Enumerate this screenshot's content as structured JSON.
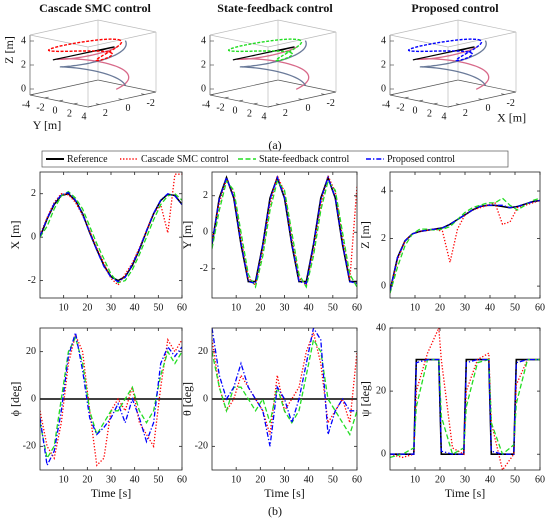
{
  "figure": {
    "label_a": "(a)",
    "label_b": "(b)"
  },
  "chart_data": [
    {
      "type": "trajectory3d",
      "title": "Cascade SMC control",
      "color": "#ff0000",
      "zlabel": "Z [m]",
      "ylabel": "Y [m]",
      "xlim": [
        3,
        -3
      ],
      "xticks": [
        -2,
        0,
        2
      ],
      "ylim": [
        -4,
        4
      ],
      "yticks": [
        -4,
        -2,
        0,
        2,
        4
      ],
      "zlim": [
        -0.5,
        4.5
      ],
      "zticks": [
        0,
        2,
        4
      ]
    },
    {
      "type": "trajectory3d",
      "title": "State-feedback control",
      "color": "#22dd22",
      "xlim": [
        3,
        -3
      ],
      "xticks": [
        -2,
        0,
        2
      ],
      "ylim": [
        -4,
        4
      ],
      "yticks": [
        -4,
        -2,
        0,
        2,
        4
      ],
      "zlim": [
        -0.5,
        4.5
      ],
      "zticks": [
        0,
        2,
        4
      ]
    },
    {
      "type": "trajectory3d",
      "title": "Proposed control",
      "color": "#0000ff",
      "xlabel": "X [m]",
      "xlim": [
        3,
        -3
      ],
      "xticks": [
        -2,
        0,
        2
      ],
      "ylim": [
        -4,
        4
      ],
      "yticks": [
        -4,
        -2,
        0,
        2,
        4
      ],
      "zlim": [
        -0.5,
        4.5
      ],
      "zticks": [
        0,
        2,
        4
      ]
    },
    {
      "type": "line",
      "ylabel": "X [m]",
      "xlim": [
        0,
        60
      ],
      "xticks": [
        10,
        20,
        30,
        40,
        50,
        60
      ],
      "ylim": [
        -2.8,
        3.0
      ],
      "yticks": [
        -2,
        0,
        2
      ],
      "x": [
        0,
        3,
        6,
        9,
        12,
        15,
        18,
        21,
        24,
        27,
        30,
        33,
        36,
        39,
        42,
        45,
        48,
        51,
        54,
        57,
        60
      ],
      "series": [
        {
          "name": "Reference",
          "color": "#000000",
          "style": "solid",
          "values": [
            0,
            0.84,
            1.51,
            1.92,
            2.0,
            1.69,
            1.08,
            0.21,
            -0.57,
            -1.3,
            -1.82,
            -2.0,
            -1.82,
            -1.3,
            -0.57,
            0.28,
            1.08,
            1.69,
            1.98,
            1.92,
            1.51
          ]
        },
        {
          "name": "Cascade SMC control",
          "color": "#ff0000",
          "style": "dotted",
          "values": [
            0.1,
            0.9,
            1.6,
            2.0,
            1.95,
            1.6,
            1.0,
            0.3,
            -0.5,
            -1.2,
            -1.9,
            -2.2,
            -1.7,
            -1.2,
            -0.5,
            0.3,
            1.1,
            1.5,
            0.2,
            2.9,
            2.9
          ]
        },
        {
          "name": "State-feedback control",
          "color": "#22dd22",
          "style": "dashed",
          "values": [
            0.0,
            0.5,
            1.3,
            1.9,
            2.1,
            1.8,
            1.3,
            0.5,
            -0.3,
            -1.0,
            -1.7,
            -2.1,
            -2.0,
            -1.5,
            -0.8,
            0.0,
            0.8,
            1.5,
            1.9,
            2.0,
            1.7
          ]
        },
        {
          "name": "Proposed control",
          "color": "#0000ff",
          "style": "dashdot",
          "values": [
            0.05,
            0.85,
            1.55,
            1.95,
            2.05,
            1.7,
            1.05,
            0.2,
            -0.6,
            -1.35,
            -1.85,
            -2.05,
            -1.85,
            -1.25,
            -0.55,
            0.3,
            1.1,
            1.7,
            2.0,
            1.9,
            1.5
          ]
        }
      ]
    },
    {
      "type": "line",
      "ylabel": "Y [m]",
      "xlim": [
        0,
        60
      ],
      "xticks": [
        10,
        20,
        30,
        40,
        50,
        60
      ],
      "ylim": [
        -3.6,
        3.3
      ],
      "yticks": [
        -2,
        0,
        2
      ],
      "x": [
        0,
        3,
        6,
        9,
        12,
        15,
        18,
        21,
        24,
        27,
        30,
        33,
        36,
        39,
        42,
        45,
        48,
        51,
        54,
        57,
        60
      ],
      "series": [
        {
          "color": "#000000",
          "style": "solid",
          "values": [
            -0.67,
            1.87,
            3,
            1.87,
            -0.67,
            -2.7,
            -2.7,
            -0.67,
            1.87,
            3,
            1.87,
            -0.67,
            -2.7,
            -2.7,
            -0.67,
            1.87,
            3,
            1.87,
            -0.67,
            -2.7,
            -2.7
          ]
        },
        {
          "color": "#ff0000",
          "style": "dotted",
          "values": [
            -0.5,
            1.6,
            2.9,
            2.1,
            -0.3,
            -2.5,
            -2.9,
            -1.0,
            1.5,
            3.1,
            2.2,
            -0.3,
            -2.5,
            -2.9,
            -1.0,
            1.5,
            3.1,
            2.2,
            -0.3,
            -2.6,
            2.5
          ]
        },
        {
          "color": "#22dd22",
          "style": "dashed",
          "values": [
            -0.9,
            1.2,
            2.8,
            2.3,
            0.0,
            -2.3,
            -3.0,
            -1.3,
            1.2,
            2.8,
            2.3,
            0.0,
            -2.3,
            -3.0,
            -1.3,
            1.2,
            2.8,
            2.3,
            0.0,
            -2.3,
            -3.0
          ]
        },
        {
          "color": "#0000ff",
          "style": "dashdot",
          "values": [
            -0.6,
            1.8,
            3.0,
            1.9,
            -0.6,
            -2.7,
            -2.8,
            -0.7,
            1.8,
            3.0,
            1.9,
            -0.6,
            -2.7,
            -2.8,
            -0.7,
            1.8,
            3.0,
            1.9,
            -0.6,
            -2.7,
            -2.8
          ]
        }
      ]
    },
    {
      "type": "line",
      "ylabel": "Z [m]",
      "xlim": [
        0,
        60
      ],
      "xticks": [
        10,
        20,
        30,
        40,
        50,
        60
      ],
      "ylim": [
        -0.5,
        4.8
      ],
      "yticks": [
        0,
        2,
        4
      ],
      "x": [
        0,
        3,
        6,
        9,
        12,
        15,
        18,
        21,
        24,
        27,
        30,
        33,
        36,
        39,
        42,
        45,
        48,
        51,
        54,
        57,
        60
      ],
      "series": [
        {
          "color": "#000000",
          "style": "solid",
          "values": [
            -0.2,
            1.2,
            1.9,
            2.2,
            2.3,
            2.35,
            2.4,
            2.45,
            2.6,
            2.8,
            3.0,
            3.2,
            3.35,
            3.4,
            3.4,
            3.35,
            3.3,
            3.35,
            3.45,
            3.55,
            3.6
          ]
        },
        {
          "color": "#ff0000",
          "style": "dotted",
          "values": [
            -0.2,
            1.1,
            1.9,
            2.2,
            2.3,
            2.35,
            2.4,
            2.3,
            1.0,
            2.4,
            3.0,
            3.2,
            3.3,
            3.4,
            3.5,
            2.6,
            2.7,
            3.3,
            3.4,
            3.5,
            3.6
          ]
        },
        {
          "color": "#22dd22",
          "style": "dashed",
          "values": [
            -0.3,
            0.8,
            1.7,
            2.2,
            2.4,
            2.4,
            2.35,
            2.4,
            2.5,
            2.8,
            3.1,
            3.3,
            3.4,
            3.5,
            3.5,
            3.7,
            3.4,
            3.2,
            3.4,
            3.6,
            3.7
          ]
        },
        {
          "color": "#0000ff",
          "style": "dashdot",
          "values": [
            -0.2,
            1.2,
            1.9,
            2.2,
            2.3,
            2.35,
            2.4,
            2.45,
            2.6,
            2.8,
            3.0,
            3.2,
            3.35,
            3.4,
            3.4,
            3.4,
            3.3,
            3.35,
            3.45,
            3.55,
            3.6
          ]
        }
      ]
    },
    {
      "type": "line",
      "ylabel": "ϕ [deg]",
      "xlabel": "Time [s]",
      "xlim": [
        0,
        60
      ],
      "xticks": [
        10,
        20,
        30,
        40,
        50,
        60
      ],
      "ylim": [
        -30,
        30
      ],
      "yticks": [
        -20,
        0,
        20
      ],
      "x": [
        0,
        3,
        6,
        9,
        12,
        15,
        18,
        21,
        24,
        27,
        30,
        33,
        36,
        39,
        42,
        45,
        48,
        51,
        54,
        57,
        60
      ],
      "series": [
        {
          "color": "#000000",
          "style": "solid",
          "values": [
            0,
            0,
            0,
            0,
            0,
            0,
            0,
            0,
            0,
            0,
            0,
            0,
            0,
            0,
            0,
            0,
            0,
            0,
            0,
            0,
            0
          ]
        },
        {
          "color": "#ff0000",
          "style": "dotted",
          "values": [
            -5,
            -20,
            -25,
            -10,
            15,
            27,
            20,
            -5,
            -28,
            -25,
            -5,
            0,
            -5,
            5,
            -10,
            -15,
            -20,
            5,
            25,
            20,
            25
          ]
        },
        {
          "color": "#22dd22",
          "style": "dashed",
          "values": [
            -10,
            -25,
            -20,
            0,
            20,
            26,
            15,
            -5,
            -15,
            -10,
            -5,
            -5,
            0,
            5,
            -5,
            -10,
            -5,
            10,
            20,
            15,
            20
          ]
        },
        {
          "color": "#0000ff",
          "style": "dashdot",
          "values": [
            -8,
            -28,
            -22,
            -5,
            18,
            28,
            12,
            -8,
            -15,
            -12,
            -8,
            -2,
            -10,
            0,
            -8,
            -18,
            -10,
            15,
            22,
            18,
            22
          ]
        }
      ]
    },
    {
      "type": "line",
      "ylabel": "θ [deg]",
      "xlabel": "Time [s]",
      "xlim": [
        0,
        60
      ],
      "xticks": [
        10,
        20,
        30,
        40,
        50,
        60
      ],
      "ylim": [
        -30,
        30
      ],
      "yticks": [
        -20,
        0,
        20
      ],
      "x": [
        0,
        3,
        6,
        9,
        12,
        15,
        18,
        21,
        24,
        27,
        30,
        33,
        36,
        39,
        42,
        45,
        48,
        51,
        54,
        57,
        60
      ],
      "series": [
        {
          "color": "#000000",
          "style": "solid",
          "values": [
            0,
            0,
            0,
            0,
            0,
            0,
            0,
            0,
            0,
            0,
            0,
            0,
            0,
            0,
            0,
            0,
            0,
            0,
            0,
            0,
            0
          ]
        },
        {
          "color": "#ff0000",
          "style": "dotted",
          "values": [
            25,
            5,
            -5,
            0,
            10,
            5,
            0,
            -5,
            -15,
            10,
            -5,
            0,
            5,
            20,
            28,
            15,
            -10,
            -5,
            0,
            -10,
            20
          ]
        },
        {
          "color": "#22dd22",
          "style": "dashed",
          "values": [
            20,
            5,
            -5,
            5,
            5,
            0,
            -5,
            0,
            -10,
            5,
            -5,
            -10,
            -5,
            10,
            25,
            20,
            0,
            -5,
            -10,
            -15,
            -5
          ]
        },
        {
          "color": "#0000ff",
          "style": "dashdot",
          "values": [
            30,
            10,
            0,
            5,
            15,
            5,
            0,
            -5,
            -20,
            5,
            0,
            -10,
            0,
            15,
            30,
            25,
            -15,
            -5,
            0,
            -5,
            -5
          ]
        }
      ]
    },
    {
      "type": "line",
      "ylabel": "ψ [deg]",
      "xlabel": "Time [s]",
      "xlim": [
        0,
        60
      ],
      "xticks": [
        10,
        20,
        30,
        40,
        50,
        60
      ],
      "ylim": [
        -5,
        40
      ],
      "yticks": [
        0,
        20,
        40
      ],
      "x": [
        0,
        5,
        9.5,
        10.5,
        15,
        19.5,
        20.5,
        25,
        29.5,
        30.5,
        35,
        39.5,
        40.5,
        45,
        49.5,
        50.5,
        55,
        60
      ],
      "series": [
        {
          "color": "#000000",
          "style": "solid",
          "values": [
            0,
            0,
            0,
            30,
            30,
            30,
            0,
            0,
            0,
            30,
            30,
            30,
            0,
            0,
            0,
            30,
            30,
            30
          ]
        },
        {
          "color": "#ff0000",
          "style": "dotted",
          "values": [
            0,
            -1,
            0,
            20,
            32,
            40,
            30,
            2,
            0,
            20,
            30,
            32,
            10,
            -5,
            0,
            22,
            30,
            30
          ]
        },
        {
          "color": "#22dd22",
          "style": "dashed",
          "values": [
            -1,
            0,
            2,
            15,
            30,
            30,
            12,
            0,
            2,
            15,
            29,
            30,
            10,
            0,
            3,
            16,
            30,
            30
          ]
        },
        {
          "color": "#0000ff",
          "style": "dashdot",
          "values": [
            0,
            0,
            0,
            29,
            30,
            30,
            1,
            0,
            0,
            29,
            30,
            30,
            1,
            0,
            0,
            29,
            30,
            30
          ]
        }
      ]
    }
  ]
}
